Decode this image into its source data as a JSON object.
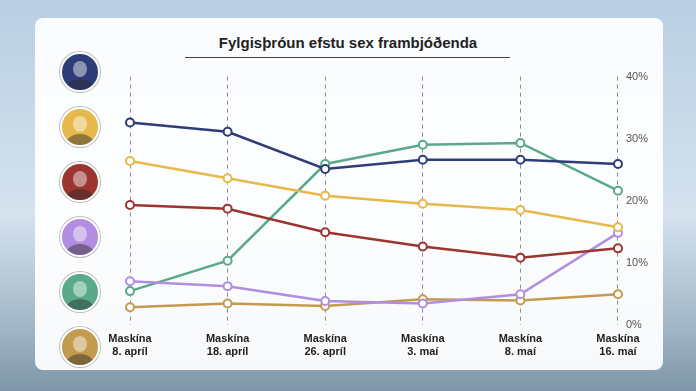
{
  "chart_data": {
    "type": "line",
    "title": "Fylgisþróun efstu sex frambjóðenda",
    "categories": [
      "Maskína\n8. apríl",
      "Maskína\n18. apríl",
      "Maskína\n26. apríl",
      "Maskína\n3. maí",
      "Maskína\n8. maí",
      "Maskína\n16. maí"
    ],
    "series": [
      {
        "color": "#2e3d78",
        "values": [
          32.6,
          31.1,
          25.1,
          26.6,
          26.6,
          25.9
        ]
      },
      {
        "color": "#e6b94c",
        "values": [
          26.4,
          23.6,
          20.8,
          19.5,
          18.5,
          15.7
        ]
      },
      {
        "color": "#9b3530",
        "values": [
          19.3,
          18.7,
          14.9,
          12.6,
          10.8,
          12.3
        ]
      },
      {
        "color": "#b18ee0",
        "values": [
          7.0,
          6.2,
          3.8,
          3.4,
          4.9,
          14.8
        ]
      },
      {
        "color": "#5aa98a",
        "values": [
          5.4,
          10.3,
          25.9,
          29.0,
          29.3,
          21.6
        ]
      },
      {
        "color": "#c49a4e",
        "values": [
          2.8,
          3.4,
          3.0,
          4.1,
          3.9,
          4.9
        ]
      }
    ],
    "ylim": [
      0,
      40
    ],
    "yticks": [
      {
        "value": 0,
        "label": "0%"
      },
      {
        "value": 10,
        "label": "10%"
      },
      {
        "value": 20,
        "label": "20%"
      },
      {
        "value": 30,
        "label": "30%"
      },
      {
        "value": 40,
        "label": "40%"
      }
    ],
    "grid": true,
    "marker": "circle",
    "line_style": "solid"
  }
}
